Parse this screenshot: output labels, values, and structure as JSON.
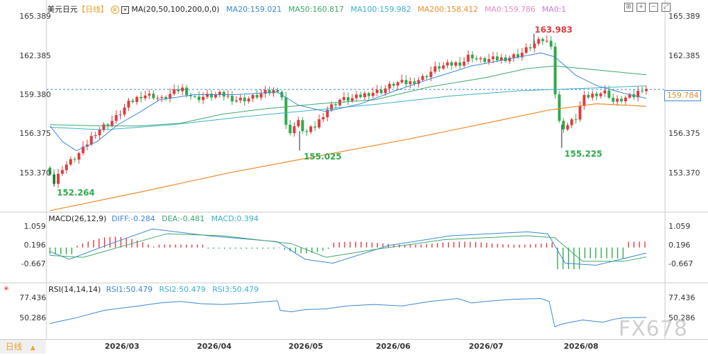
{
  "header": {
    "symbol": "美元日元",
    "period": "【日线】",
    "ma_label": "MA(20,50,100,200,0,0)",
    "ma20": "MA20:159.021",
    "ma50": "MA50:160.817",
    "ma100": "MA100:159.982",
    "ma200": "MA200:158.412",
    "ma0a": "MA0:159.786",
    "ma0b": "MA0:1"
  },
  "macd": {
    "label": "MACD(26,12,9)",
    "diff": "DIFF:-0.284",
    "dea": "DEA:-0.481",
    "macd": "MACD:0.394"
  },
  "rsi": {
    "label": "RSI(14,14,14)",
    "rsi1": "RSI1:50.479",
    "rsi2": "RSI2:50.479",
    "rsi3": "RSI3:50.479"
  },
  "colors": {
    "up": "#e03a3e",
    "down": "#2eaa4a",
    "ma20": "#3a86d6",
    "ma50": "#3aa86a",
    "ma100": "#38b0c8",
    "ma200": "#f08a2a",
    "current": "#3a86d6"
  },
  "chart_data": {
    "type": "candlestick",
    "price_axis": [
      "165.389",
      "162.385",
      "159.380",
      "156.375",
      "153.370"
    ],
    "current_price": "159.784",
    "annotations": [
      "163.983",
      "155.025",
      "155.225",
      "152.264"
    ],
    "macd_axis": [
      "1.059",
      "0.196",
      "-0.667"
    ],
    "rsi_axis": [
      "77.436",
      "50.286"
    ],
    "x_labels": [
      "2026/03",
      "2026/04",
      "2026/05",
      "2026/06",
      "2026/07",
      "2026/08"
    ],
    "series": [
      {
        "name": "MA20",
        "last": 159.021
      },
      {
        "name": "MA50",
        "last": 160.817
      },
      {
        "name": "MA100",
        "last": 159.982
      },
      {
        "name": "MA200",
        "last": 158.412
      },
      {
        "name": "MA0",
        "last": 159.786
      },
      {
        "name": "DIFF",
        "last": -0.284
      },
      {
        "name": "DEA",
        "last": -0.481
      },
      {
        "name": "MACD",
        "last": 0.394
      },
      {
        "name": "RSI1",
        "last": 50.479
      },
      {
        "name": "RSI2",
        "last": 50.479
      },
      {
        "name": "RSI3",
        "last": 50.479
      }
    ]
  },
  "period_tab": "日线",
  "watermark": "FX678"
}
